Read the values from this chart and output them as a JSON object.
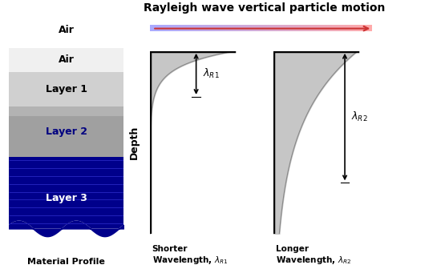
{
  "title": "Rayleigh wave vertical particle motion",
  "title_fontsize": 10,
  "title_fontweight": "bold",
  "air_label": "Air",
  "layer_labels": [
    "Layer 1",
    "Layer 2",
    "Layer 3"
  ],
  "layer_label_colors": [
    "black",
    "navy",
    "white"
  ],
  "air_color": "#f0f0f0",
  "layer1_color": "#d0d0d0",
  "layer2_color": "#a0a0a0",
  "layer3_color": "#00008B",
  "material_profile_label": "Material Profile",
  "shorter_label": "Shorter\nWavelength, $\\lambda_{R1}$",
  "longer_label": "Longer\nWavelength, $\\lambda_{R2}$",
  "depth_label": "Depth",
  "curve_fill_color": "#c0c0c0",
  "background_color": "#ffffff",
  "shorter_decay": 12,
  "longer_decay": 2.5,
  "shorter_lambda_depth": 0.25,
  "longer_lambda_depth": 0.72
}
